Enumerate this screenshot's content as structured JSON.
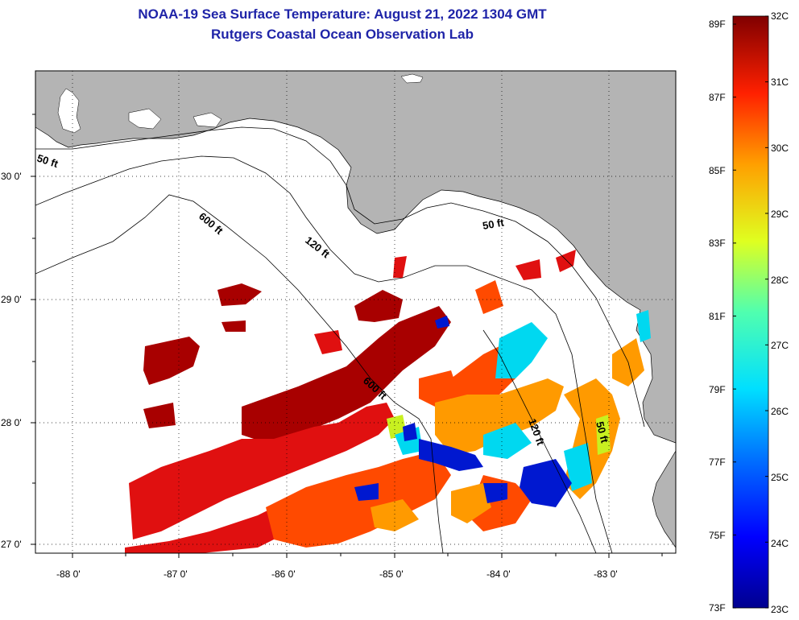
{
  "title": "NOAA-19 Sea Surface Temperature:  August 21, 2022 1304 GMT",
  "subtitle": "Rutgers Coastal Ocean Observation Lab",
  "colors": {
    "land": "#b4b4b4",
    "nodata": "#ffffff",
    "frame": "#000000"
  },
  "map": {
    "lon_ticks": [
      "-88 0'",
      "-87 0'",
      "-86 0'",
      "-85 0'",
      "-84 0'",
      "-83 0'"
    ],
    "lat_ticks": [
      "30 0'",
      "29 0'",
      "28 0'",
      "27 0'"
    ],
    "lon_range": [
      -88.35,
      -82.5
    ],
    "lat_range": [
      26.95,
      30.85
    ],
    "contour_labels": [
      "50 ft",
      "600 ft",
      "120 ft",
      "50 ft",
      "600 ft",
      "120 ft",
      "50 ft"
    ]
  },
  "colorbar": {
    "fahrenheit": [
      "89F",
      "87F",
      "85F",
      "83F",
      "81F",
      "79F",
      "77F",
      "75F",
      "73F"
    ],
    "celsius": [
      "32C",
      "31C",
      "30C",
      "29C",
      "28C",
      "27C",
      "26C",
      "25C",
      "24C",
      "23C"
    ],
    "range_c": [
      23,
      32
    ]
  }
}
